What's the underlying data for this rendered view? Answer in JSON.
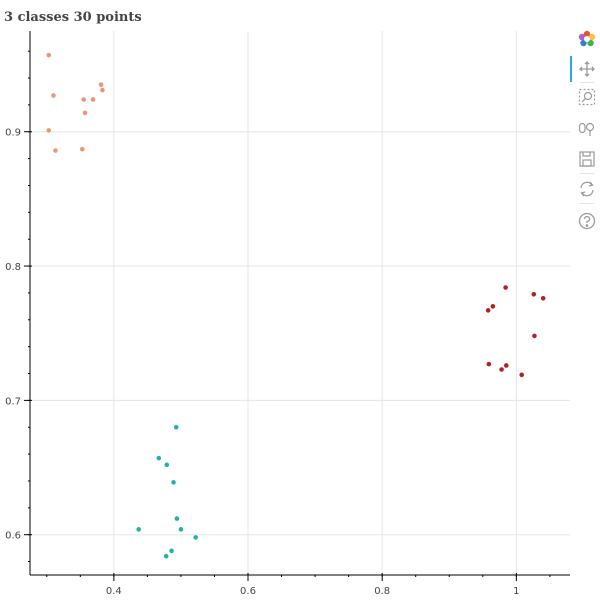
{
  "chart_data": {
    "type": "scatter",
    "title": "3 classes 30 points",
    "xlabel": "",
    "ylabel": "",
    "xlim": [
      0.275,
      1.08
    ],
    "ylim": [
      0.57,
      0.975
    ],
    "x_ticks": [
      0.4,
      0.6,
      0.8,
      1.0
    ],
    "x_tick_labels": [
      "0.4",
      "0.6",
      "0.8",
      "1"
    ],
    "y_ticks": [
      0.6,
      0.7,
      0.8,
      0.9
    ],
    "y_tick_labels": [
      "0.6",
      "0.7",
      "0.8",
      "0.9"
    ],
    "grid": true,
    "series": [
      {
        "color": "#e9967a",
        "points": [
          [
            0.303,
            0.957
          ],
          [
            0.31,
            0.927
          ],
          [
            0.355,
            0.924
          ],
          [
            0.369,
            0.924
          ],
          [
            0.381,
            0.935
          ],
          [
            0.383,
            0.931
          ],
          [
            0.357,
            0.914
          ],
          [
            0.303,
            0.901
          ],
          [
            0.313,
            0.886
          ],
          [
            0.353,
            0.887
          ]
        ]
      },
      {
        "color": "#b22222",
        "points": [
          [
            0.984,
            0.784
          ],
          [
            0.965,
            0.77
          ],
          [
            0.958,
            0.767
          ],
          [
            1.026,
            0.779
          ],
          [
            1.04,
            0.776
          ],
          [
            1.027,
            0.748
          ],
          [
            0.959,
            0.727
          ],
          [
            0.985,
            0.726
          ],
          [
            0.978,
            0.723
          ],
          [
            1.008,
            0.719
          ]
        ]
      },
      {
        "color": "#20b2aa",
        "points": [
          [
            0.493,
            0.68
          ],
          [
            0.467,
            0.657
          ],
          [
            0.479,
            0.652
          ],
          [
            0.489,
            0.639
          ],
          [
            0.494,
            0.612
          ],
          [
            0.437,
            0.604
          ],
          [
            0.5,
            0.604
          ],
          [
            0.522,
            0.598
          ],
          [
            0.486,
            0.588
          ],
          [
            0.478,
            0.584
          ]
        ]
      }
    ]
  },
  "toolbar": {
    "tools": [
      "bokeh-logo-icon",
      "pan-icon",
      "box-zoom-icon",
      "wheel-zoom-icon",
      "save-icon",
      "reset-icon",
      "help-icon"
    ]
  }
}
